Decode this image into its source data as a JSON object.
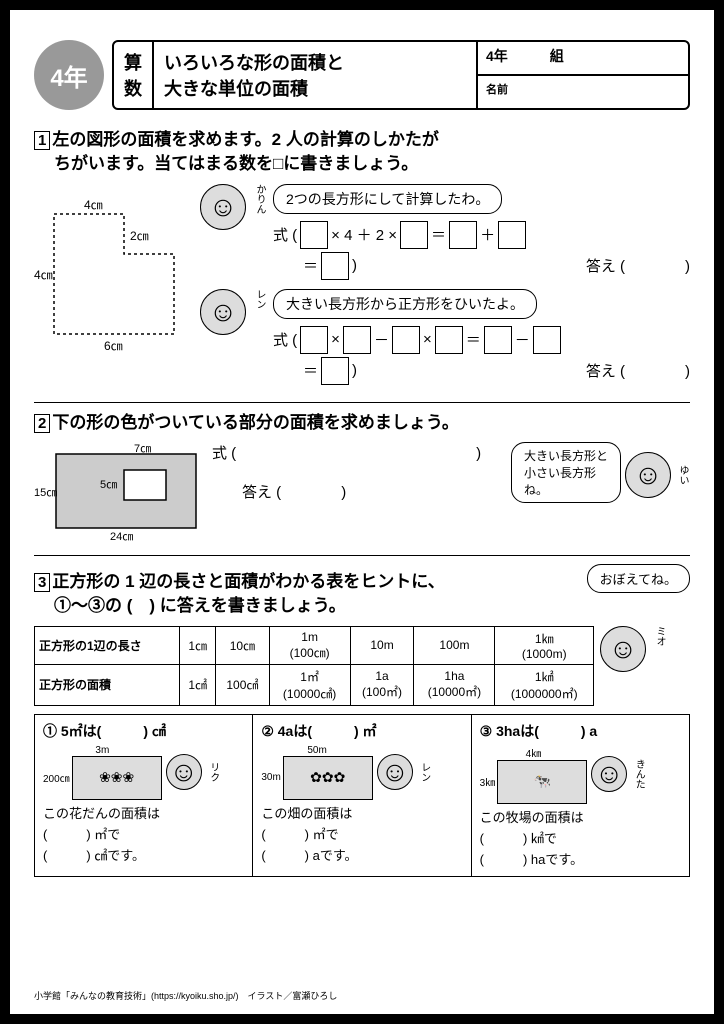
{
  "header": {
    "grade_badge": "4年",
    "subject1": "算",
    "subject2": "数",
    "title1": "いろいろな形の面積と",
    "title2": "大きな単位の面積",
    "info_grade": "4年",
    "info_class": "組",
    "info_name_lbl": "名前"
  },
  "q1": {
    "num": "1",
    "text1": "左の図形の面積を求めます。2 人の計算のしかたが",
    "text2": "ちがいます。当てはまる数を□に書きましょう。",
    "dim_top": "4㎝",
    "dim_step": "2㎝",
    "dim_left": "4㎝",
    "dim_bottom": "6㎝",
    "karin": "かりん",
    "ren": "レン",
    "bubble1": "2つの長方形にして計算したわ。",
    "bubble2": "大きい長方形から正方形をひいたよ。",
    "shiki": "式 (",
    "x4p2x": "× 4 ＋ 2 ×",
    "eq": "＝",
    "plus": "＋",
    "minus": "－",
    "times": "×",
    "close": ")",
    "kotae": "答え ("
  },
  "q2": {
    "num": "2",
    "text": "下の形の色がついている部分の面積を求めましょう。",
    "dim_top": "7㎝",
    "dim_inner": "5㎝",
    "dim_left": "15㎝",
    "dim_bottom": "24㎝",
    "shiki": "式 (",
    "kotae": "答え (",
    "bubble": "大きい長方形と小さい長方形ね。",
    "yui": "ゆい"
  },
  "q3": {
    "num": "3",
    "text1": "正方形の 1 辺の長さと面積がわかる表をヒントに、",
    "text2": "①〜③の (　) に答えを書きましょう。",
    "bubble": "おぼえてね。",
    "mio": "ミオ",
    "tbl": {
      "r1": "正方形の1辺の長さ",
      "r2": "正方形の面積",
      "h": [
        "1㎝",
        "10㎝",
        "1m\n(100㎝)",
        "10m",
        "100m",
        "1㎞\n(1000m)"
      ],
      "d": [
        "1㎠",
        "100㎠",
        "1㎡\n(10000㎠)",
        "1a\n(100㎡)",
        "1ha\n(10000㎡)",
        "1㎢\n(1000000㎡)"
      ]
    },
    "sub": [
      {
        "n": "①",
        "q": "5㎡は(",
        "u": ") ㎠",
        "w": "3m",
        "h": "200㎝",
        "deco": "❀❀❀",
        "name": "リク",
        "t1": "この花だんの面積は",
        "t2": "(　　　) ㎡で",
        "t3": "(　　　) ㎠です。"
      },
      {
        "n": "②",
        "q": "4aは(",
        "u": ") ㎡",
        "w": "50m",
        "h": "30m",
        "deco": "✿✿✿",
        "name": "レン",
        "t1": "この畑の面積は",
        "t2": "(　　　) ㎡で",
        "t3": "(　　　) aです。"
      },
      {
        "n": "③",
        "q": "3haは(",
        "u": ") a",
        "w": "4㎞",
        "h": "3㎞",
        "deco": "🐄",
        "name": "きんた",
        "t1": "この牧場の面積は",
        "t2": "(　　　) ㎢で",
        "t3": "(　　　) haです。"
      }
    ]
  },
  "footer": "小学館「みんなの教育技術」(https://kyoiku.sho.jp/)　イラスト／富瀬ひろし"
}
